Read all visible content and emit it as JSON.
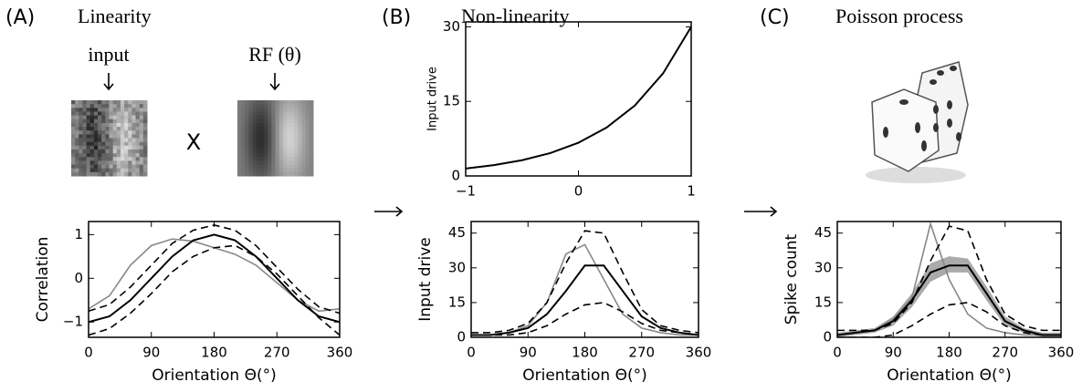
{
  "panels": [
    {
      "label": "(A)",
      "title": "Linearity"
    },
    {
      "label": "(B)",
      "title": "Non-linearity"
    },
    {
      "label": "(C)",
      "title": "Poisson process"
    }
  ],
  "linearity": {
    "input": "input",
    "rf": "RF (θ)",
    "operator": "X"
  },
  "chart_data": [
    {
      "type": "line",
      "ylabel": "Correlation",
      "xlabel": "Orientation Θ(°)",
      "x": [
        0,
        30,
        60,
        90,
        120,
        150,
        180,
        210,
        240,
        270,
        300,
        330,
        360
      ],
      "xlim": [
        0,
        360
      ],
      "xticks": [
        0,
        90,
        180,
        270,
        360
      ],
      "ylim": [
        -1.35,
        1.3
      ],
      "yticks": [
        {
          "value": -1,
          "label": "−1"
        },
        0,
        1
      ],
      "series": [
        {
          "color": "#888888",
          "dash": false,
          "values": [
            -0.7,
            -0.4,
            0.3,
            0.75,
            0.9,
            0.85,
            0.7,
            0.55,
            0.3,
            -0.1,
            -0.5,
            -0.75,
            -0.7
          ]
        },
        {
          "color": "#000000",
          "dash": true,
          "values": [
            -0.75,
            -0.6,
            -0.2,
            0.3,
            0.8,
            1.1,
            1.22,
            1.1,
            0.75,
            0.25,
            -0.25,
            -0.65,
            -0.8
          ]
        },
        {
          "color": "#000000",
          "dash": true,
          "values": [
            -1.3,
            -1.15,
            -0.8,
            -0.35,
            0.15,
            0.5,
            0.7,
            0.75,
            0.5,
            0.1,
            -0.4,
            -0.9,
            -1.3
          ]
        },
        {
          "color": "#000000",
          "dash": false,
          "values": [
            -1,
            -0.87,
            -0.5,
            0,
            0.5,
            0.87,
            1,
            0.87,
            0.5,
            0,
            -0.5,
            -0.87,
            -1
          ]
        }
      ]
    },
    {
      "type": "line",
      "ylabel": "Input drive",
      "x": [
        -1,
        -0.75,
        -0.5,
        -0.25,
        0,
        0.25,
        0.5,
        0.75,
        1
      ],
      "xlim": [
        -1,
        1
      ],
      "xticks": [
        {
          "value": -1,
          "label": "−1"
        },
        0,
        1
      ],
      "ylim": [
        0,
        31
      ],
      "yticks": [
        0,
        15,
        30
      ],
      "series": [
        {
          "color": "#000000",
          "dash": false,
          "values": [
            1.49,
            2.17,
            3.16,
            4.59,
            6.69,
            9.74,
            14.17,
            20.62,
            30
          ]
        }
      ]
    },
    {
      "type": "line",
      "ylabel": "Input drive",
      "xlabel": "Orientation Θ(°)",
      "x": [
        0,
        30,
        60,
        90,
        120,
        150,
        180,
        210,
        240,
        270,
        300,
        330,
        360
      ],
      "xlim": [
        0,
        360
      ],
      "xticks": [
        0,
        90,
        180,
        270,
        360
      ],
      "ylim": [
        0,
        50
      ],
      "yticks": [
        0,
        15,
        30,
        45
      ],
      "series": [
        {
          "color": "#888888",
          "dash": false,
          "values": [
            1,
            1,
            2,
            5,
            15,
            36,
            40,
            25,
            10,
            4,
            2,
            1,
            1
          ]
        },
        {
          "color": "#000000",
          "dash": true,
          "values": [
            2,
            2,
            3,
            6,
            15,
            32,
            46,
            45,
            28,
            12,
            5,
            3,
            2
          ]
        },
        {
          "color": "#000000",
          "dash": true,
          "values": [
            1,
            1,
            1,
            2,
            5,
            10,
            14,
            15,
            11,
            6,
            3,
            2,
            1
          ]
        },
        {
          "color": "#000000",
          "dash": false,
          "values": [
            1,
            1,
            2,
            4,
            10,
            20,
            31,
            31,
            20,
            9,
            4,
            2,
            1
          ]
        }
      ]
    },
    {
      "type": "line",
      "ylabel": "Spike count",
      "xlabel": "Orientation Θ(°)",
      "x": [
        0,
        30,
        60,
        90,
        120,
        150,
        180,
        210,
        240,
        270,
        300,
        330,
        360
      ],
      "xlim": [
        0,
        360
      ],
      "xticks": [
        0,
        90,
        180,
        270,
        360
      ],
      "ylim": [
        0,
        50
      ],
      "yticks": [
        0,
        15,
        30,
        45
      ],
      "band": {
        "color": "#aaaaaa",
        "lower": [
          0,
          1,
          2,
          5,
          13,
          24,
          28,
          28,
          16,
          5,
          2,
          0,
          0
        ],
        "upper": [
          2,
          3,
          4,
          9,
          19,
          32,
          35,
          34,
          22,
          9,
          4,
          2,
          2
        ]
      },
      "series": [
        {
          "color": "#888888",
          "dash": false,
          "values": [
            1,
            2,
            3,
            8,
            17,
            49,
            25,
            10,
            4,
            2,
            1,
            1,
            1
          ]
        },
        {
          "color": "#000000",
          "dash": true,
          "values": [
            3,
            3,
            3,
            6,
            15,
            33,
            48,
            46,
            25,
            10,
            5,
            3,
            3
          ]
        },
        {
          "color": "#000000",
          "dash": true,
          "values": [
            0,
            0,
            0,
            1,
            5,
            10,
            14,
            15,
            11,
            5,
            2,
            1,
            1
          ]
        },
        {
          "color": "#000000",
          "dash": false,
          "values": [
            1,
            2,
            3,
            7,
            16,
            28,
            31,
            31,
            19,
            7,
            3,
            1,
            1
          ]
        }
      ]
    }
  ]
}
